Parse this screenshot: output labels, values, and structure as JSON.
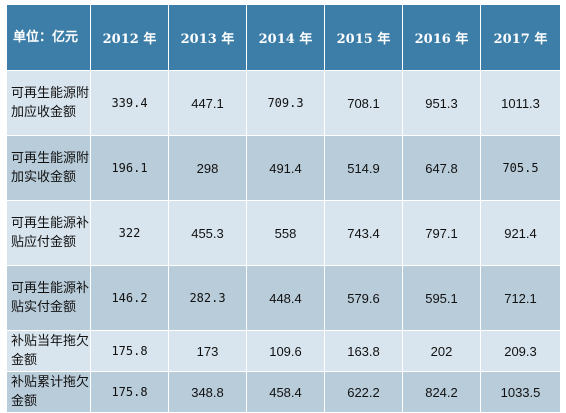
{
  "table": {
    "corner_label": "单位：亿元",
    "columns": [
      "2012 年",
      "2013 年",
      "2014 年",
      "2015 年",
      "2016 年",
      "2017 年"
    ],
    "rows": [
      {
        "label": "可再生能源附加应收金额",
        "values": [
          "339.4",
          "447.1",
          "709.3",
          "708.1",
          "951.3",
          "1011.3"
        ]
      },
      {
        "label": "可再生能源附加实收金额",
        "values": [
          "196.1",
          "298",
          "491.4",
          "514.9",
          "647.8",
          "705.5"
        ]
      },
      {
        "label": "可再生能源补贴应付金额",
        "values": [
          "322",
          "455.3",
          "558",
          "743.4",
          "797.1",
          "921.4"
        ]
      },
      {
        "label": "可再生能源补贴实付金额",
        "values": [
          "146.2",
          "282.3",
          "448.4",
          "579.6",
          "595.1",
          "712.1"
        ]
      },
      {
        "label": "补贴当年拖欠金额",
        "values": [
          "175.8",
          "173",
          "109.6",
          "163.8",
          "202",
          "209.3"
        ]
      },
      {
        "label": "补贴累计拖欠金额",
        "values": [
          "175.8",
          "348.8",
          "458.4",
          "622.2",
          "824.2",
          "1033.5"
        ]
      }
    ]
  }
}
